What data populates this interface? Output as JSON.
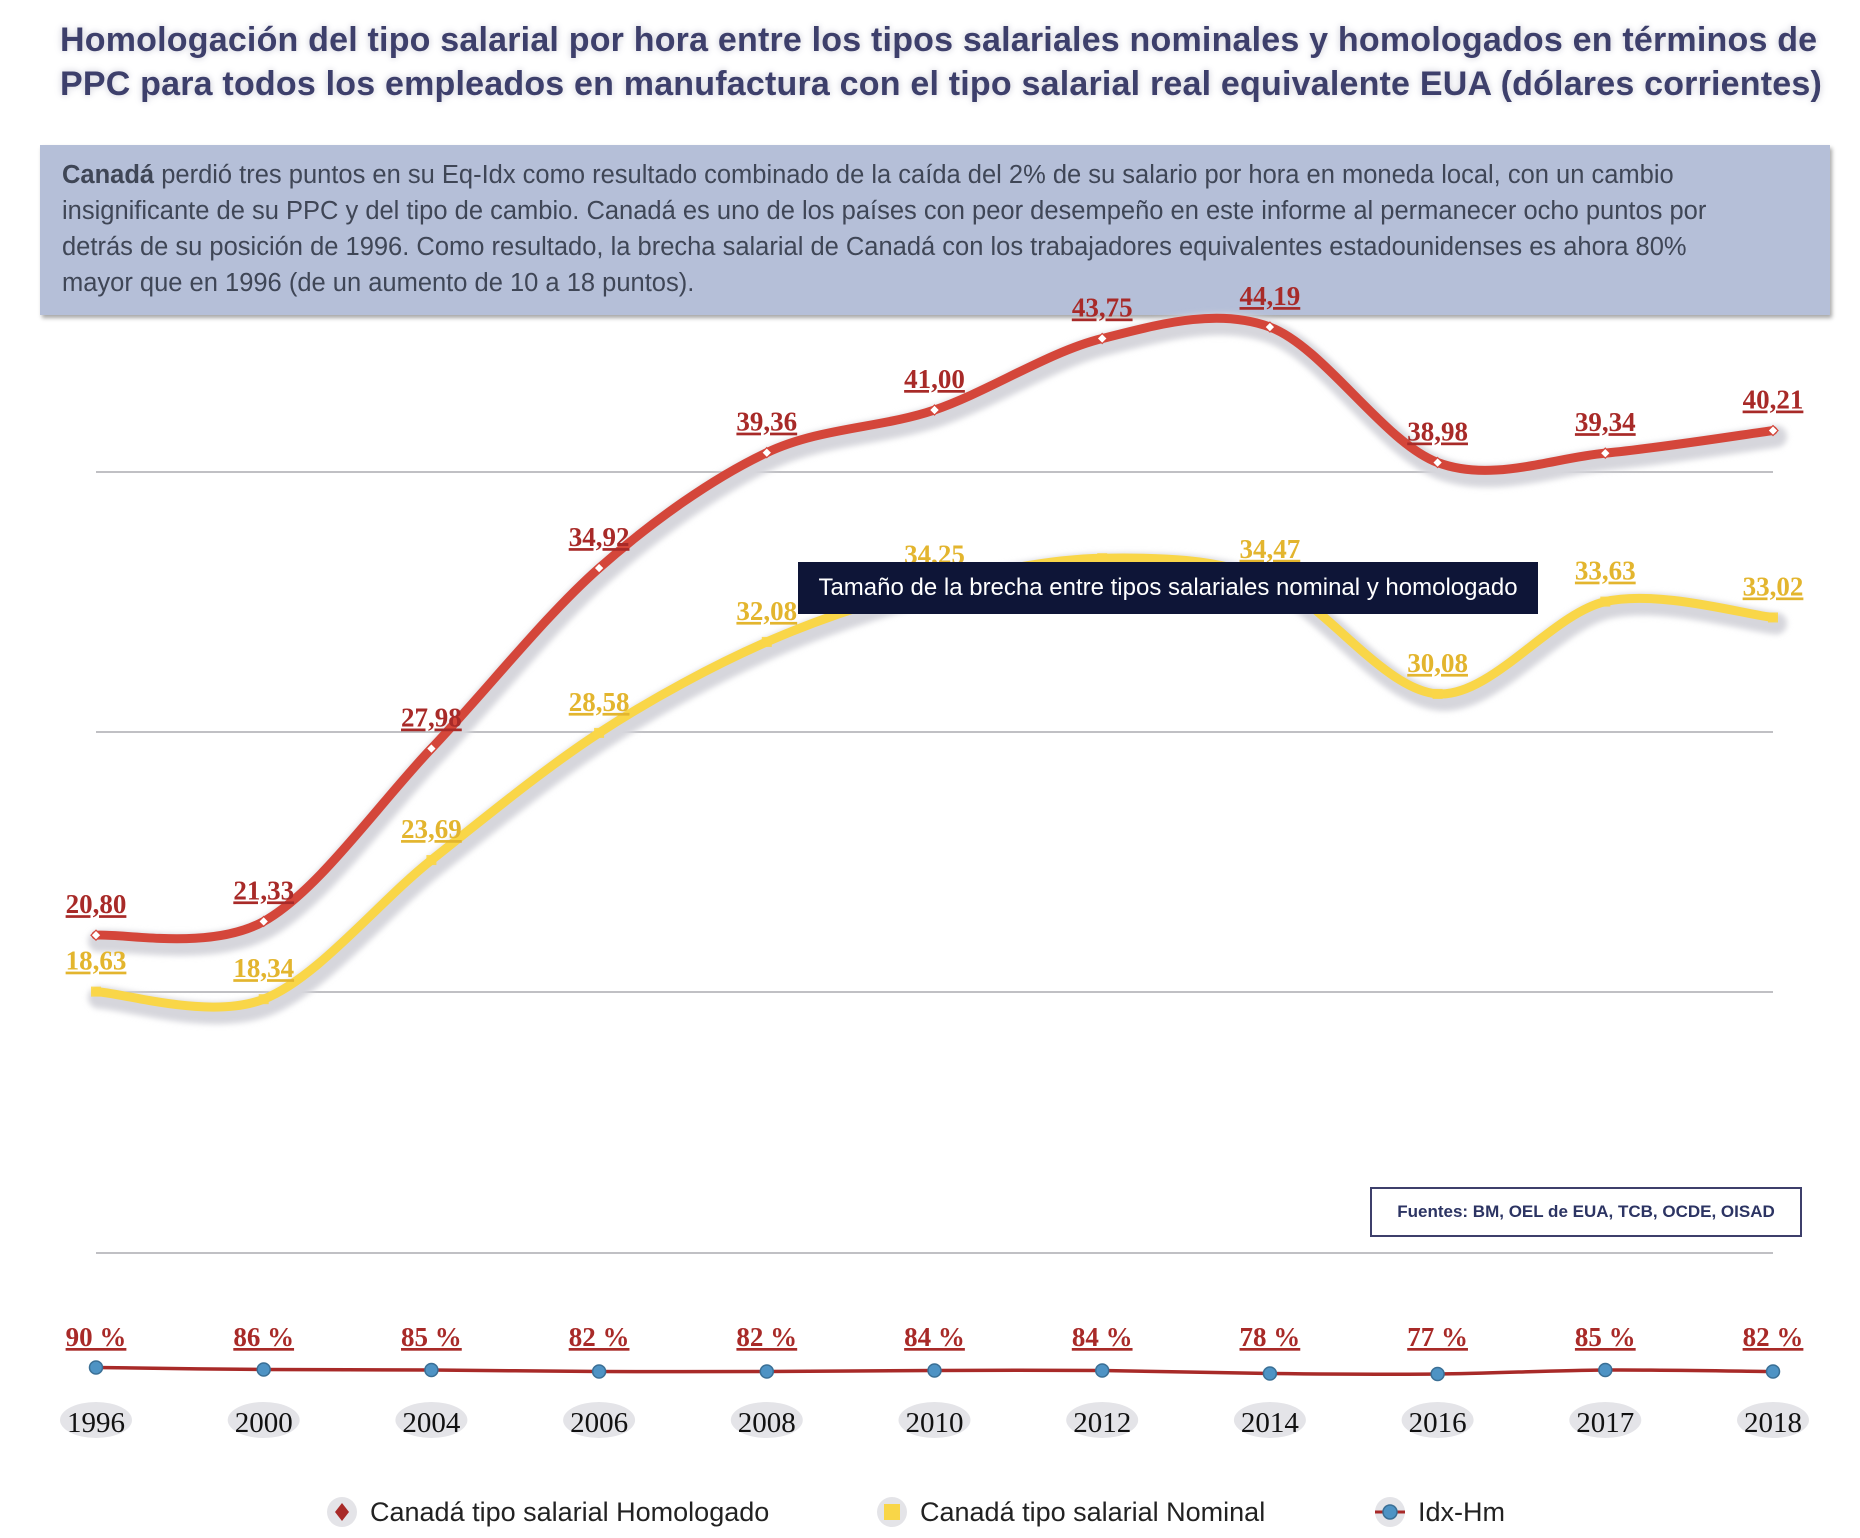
{
  "title": {
    "line1": "Homologación del tipo salarial por hora entre los tipos salariales nominales y homologados en términos de",
    "line2": "PPC para todos los empleados en manufactura con el tipo salarial real equivalente EUA (dólares corrientes)"
  },
  "description": {
    "bold": "Canadá",
    "line1_rest": " perdió tres puntos en su Eq-Idx como resultado combinado de la caída del 2% de su salario por hora en moneda local, con un cambio",
    "line2": "insignificante de su PPC y del tipo de cambio. Canadá es uno de los países con peor desempeño en este informe al permanecer ocho puntos por",
    "line3": "detrás de su posición de 1996. Como resultado, la brecha salarial de Canadá con los trabajadores equivalentes estadounidenses es ahora 80%",
    "line4": "mayor que en 1996 (de un aumento de 10 a 18 puntos)."
  },
  "tooltip": "Tamaño de la brecha entre tipos salariales nominal y homologado",
  "source": "Fuentes: BM, OEL de EUA, TCB, OCDE, OISAD",
  "chart_data": {
    "type": "line",
    "categories": [
      "1996",
      "2000",
      "2004",
      "2006",
      "2008",
      "2010",
      "2012",
      "2014",
      "2016",
      "2017",
      "2018"
    ],
    "series": [
      {
        "name": "Canadá tipo salarial Homologado",
        "color": "#d4463a",
        "values": [
          20.8,
          21.33,
          27.98,
          34.92,
          39.36,
          41.0,
          43.75,
          44.19,
          38.98,
          39.34,
          40.21
        ],
        "labels": [
          "20,80",
          "21,33",
          "27,98",
          "34,92",
          "39,36",
          "41,00",
          "43,75",
          "44,19",
          "38,98",
          "39,34",
          "40,21"
        ],
        "label_color": "#a82a28"
      },
      {
        "name": "Canadá tipo salarial Nominal",
        "color": "#f9d648",
        "values": [
          18.63,
          18.34,
          23.69,
          28.58,
          32.08,
          34.25,
          35.3,
          34.47,
          30.08,
          33.63,
          33.02
        ],
        "labels": [
          "18,63",
          "18,34",
          "23,69",
          "28,58",
          "32,08",
          "34,25",
          "",
          "34,47",
          "30,08",
          "33,63",
          "33,02"
        ],
        "label_color": "#e3b52e"
      },
      {
        "name": "Idx-Hm",
        "color": "#a82a28",
        "marker_color": "#4e93c4",
        "values": [
          90,
          86,
          85,
          82,
          82,
          84,
          84,
          78,
          77,
          85,
          82
        ],
        "labels": [
          "90 %",
          "86 %",
          "85 %",
          "82 %",
          "82 %",
          "84 %",
          "84 %",
          "78 %",
          "77 %",
          "85 %",
          "82 %"
        ],
        "label_color": "#a82a28"
      }
    ],
    "grid": true,
    "legend_position": "bottom"
  },
  "legend": {
    "homologado": "Canadá tipo salarial Homologado",
    "nominal": "Canadá tipo salarial Nominal",
    "idx": "Idx-Hm"
  }
}
